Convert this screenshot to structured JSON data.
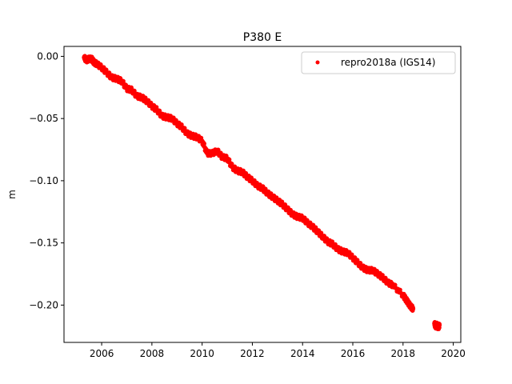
{
  "chart_data": {
    "type": "scatter",
    "title": "P380 E",
    "xlabel": "",
    "ylabel": "m",
    "xlim": [
      2004.5,
      2020.3
    ],
    "ylim": [
      -0.23,
      0.008
    ],
    "x_ticks": [
      2006,
      2008,
      2010,
      2012,
      2014,
      2016,
      2018,
      2020
    ],
    "x_tick_labels": [
      "2006",
      "2008",
      "2010",
      "2012",
      "2014",
      "2016",
      "2018",
      "2020"
    ],
    "y_ticks": [
      0.0,
      -0.05,
      -0.1,
      -0.15,
      -0.2
    ],
    "y_tick_labels": [
      "0.00",
      "−0.05",
      "−0.10",
      "−0.15",
      "−0.20"
    ],
    "grid": false,
    "legend_position": "top-right",
    "series": [
      {
        "name": "repro2018a (IGS14)",
        "color": "#ff0000",
        "marker": "dot",
        "x": [
          2005.3,
          2005.4,
          2005.5,
          2005.6,
          2005.7,
          2005.8,
          2006.0,
          2006.2,
          2006.4,
          2006.6,
          2006.8,
          2007.0,
          2007.2,
          2007.4,
          2007.6,
          2007.8,
          2008.0,
          2008.2,
          2008.4,
          2008.6,
          2008.8,
          2009.0,
          2009.2,
          2009.4,
          2009.6,
          2009.8,
          2010.0,
          2010.2,
          2010.4,
          2010.6,
          2010.8,
          2011.0,
          2011.2,
          2011.4,
          2011.6,
          2011.8,
          2012.0,
          2012.2,
          2012.4,
          2012.6,
          2012.8,
          2013.0,
          2013.2,
          2013.4,
          2013.6,
          2013.8,
          2014.0,
          2014.2,
          2014.4,
          2014.6,
          2014.8,
          2015.0,
          2015.2,
          2015.4,
          2015.6,
          2015.8,
          2016.0,
          2016.2,
          2016.4,
          2016.6,
          2016.8,
          2017.0,
          2017.2,
          2017.4,
          2017.6,
          2018.0,
          2018.1,
          2018.2,
          2018.3,
          2018.4,
          2019.25,
          2019.3,
          2019.35,
          2019.4,
          2019.45
        ],
        "y": [
          -0.001,
          -0.003,
          -0.002,
          -0.002,
          -0.005,
          -0.006,
          -0.009,
          -0.013,
          -0.017,
          -0.018,
          -0.02,
          -0.026,
          -0.027,
          -0.032,
          -0.033,
          -0.036,
          -0.04,
          -0.043,
          -0.048,
          -0.049,
          -0.05,
          -0.054,
          -0.057,
          -0.062,
          -0.064,
          -0.065,
          -0.068,
          -0.078,
          -0.078,
          -0.076,
          -0.081,
          -0.082,
          -0.089,
          -0.092,
          -0.093,
          -0.097,
          -0.1,
          -0.104,
          -0.106,
          -0.11,
          -0.113,
          -0.116,
          -0.119,
          -0.123,
          -0.127,
          -0.129,
          -0.13,
          -0.134,
          -0.137,
          -0.141,
          -0.145,
          -0.149,
          -0.151,
          -0.155,
          -0.157,
          -0.158,
          -0.162,
          -0.166,
          -0.17,
          -0.172,
          -0.172,
          -0.175,
          -0.178,
          -0.182,
          -0.184,
          -0.192,
          -0.195,
          -0.198,
          -0.201,
          -0.203,
          -0.215,
          -0.217,
          -0.216,
          -0.218,
          -0.216
        ]
      }
    ]
  }
}
